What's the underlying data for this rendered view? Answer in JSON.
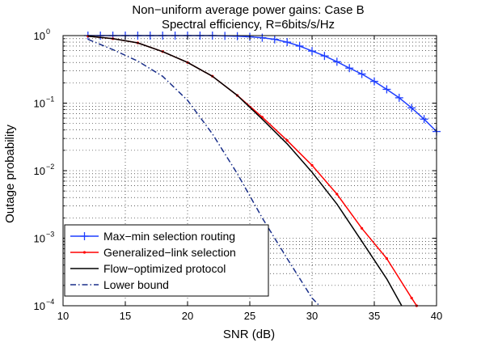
{
  "chart_data": {
    "type": "line",
    "title": "Non−uniform average power gains: Case B",
    "subtitle": "Spectral efficiency, R=6bits/s/Hz",
    "xlabel": "SNR (dB)",
    "ylabel": "Outage probability",
    "xlim": [
      10,
      40
    ],
    "ylim": [
      0.0001,
      1
    ],
    "yscale": "log",
    "grid": true,
    "legend_position": "bottom-left",
    "x_ticks": [
      "10",
      "15",
      "20",
      "25",
      "30",
      "35",
      "40"
    ],
    "y_ticks": [
      {
        "base": "10",
        "exp": "−4",
        "value": 0.0001
      },
      {
        "base": "10",
        "exp": "−3",
        "value": 0.001
      },
      {
        "base": "10",
        "exp": "−2",
        "value": 0.01
      },
      {
        "base": "10",
        "exp": "−1",
        "value": 0.1
      },
      {
        "base": "10",
        "exp": "0",
        "value": 1
      }
    ],
    "series": [
      {
        "name": "Max−min selection routing",
        "color": "#1f3fff",
        "style": "solid",
        "marker": "plus",
        "x": [
          12,
          13,
          14,
          15,
          16,
          17,
          18,
          19,
          20,
          21,
          22,
          23,
          24,
          25,
          26,
          27,
          28,
          29,
          30,
          31,
          32,
          33,
          34,
          35,
          36,
          37,
          38,
          39,
          40
        ],
        "y": [
          1.0,
          1.0,
          1.0,
          1.0,
          1.0,
          1.0,
          1.0,
          1.0,
          1.0,
          1.0,
          1.0,
          0.99,
          0.98,
          0.96,
          0.93,
          0.88,
          0.8,
          0.7,
          0.59,
          0.5,
          0.41,
          0.33,
          0.27,
          0.21,
          0.16,
          0.12,
          0.085,
          0.058,
          0.038
        ]
      },
      {
        "name": "Generalized−link selection",
        "color": "#ff0000",
        "style": "solid",
        "marker": "dot",
        "x": [
          12,
          14,
          16,
          18,
          20,
          22,
          24,
          26,
          28,
          30,
          32,
          34,
          36,
          38,
          38.4
        ],
        "y": [
          0.98,
          0.9,
          0.78,
          0.58,
          0.4,
          0.25,
          0.13,
          0.062,
          0.028,
          0.012,
          0.0045,
          0.0014,
          0.0005,
          0.00013,
          0.0001
        ]
      },
      {
        "name": "Flow−optimized protocol",
        "color": "#000000",
        "style": "solid",
        "marker": "none",
        "x": [
          12,
          14,
          16,
          18,
          20,
          22,
          24,
          26,
          28,
          30,
          32,
          34,
          36,
          37.2
        ],
        "y": [
          0.98,
          0.9,
          0.78,
          0.58,
          0.4,
          0.25,
          0.13,
          0.058,
          0.025,
          0.0095,
          0.0032,
          0.0009,
          0.00025,
          0.0001
        ]
      },
      {
        "name": "Lower bound",
        "color": "#1a2f8a",
        "style": "dashdot",
        "marker": "none",
        "x": [
          12,
          14,
          16,
          18,
          20,
          22,
          24,
          26,
          28,
          30,
          30.6
        ],
        "y": [
          0.88,
          0.62,
          0.42,
          0.25,
          0.11,
          0.035,
          0.009,
          0.002,
          0.0005,
          0.00013,
          0.0001
        ]
      }
    ]
  }
}
